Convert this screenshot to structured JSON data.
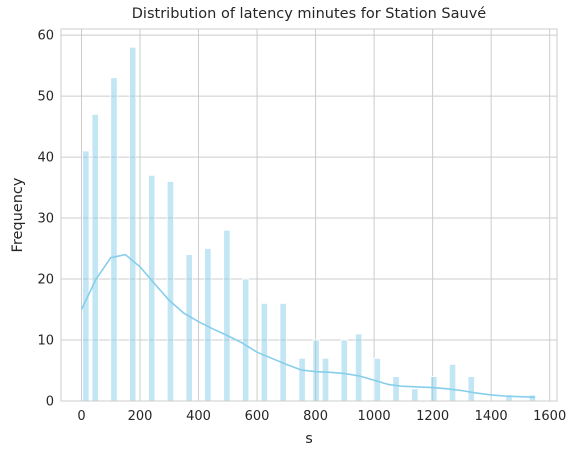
{
  "chart_data": {
    "type": "bar",
    "title": "Distribution of latency minutes for Station Sauvé",
    "xlabel": "s",
    "ylabel": "Frequency",
    "xlim": [
      -70,
      1625
    ],
    "ylim": [
      0,
      61
    ],
    "x_ticks": [
      0,
      200,
      400,
      600,
      800,
      1000,
      1200,
      1400,
      1600
    ],
    "y_ticks": [
      0,
      10,
      20,
      30,
      40,
      50,
      60
    ],
    "grid": true,
    "bar_color": "#87CEEB",
    "bar_opacity": 0.5,
    "kde_color": "#87CEEB",
    "bins": [
      {
        "x": 15,
        "value": 41
      },
      {
        "x": 47,
        "value": 47
      },
      {
        "x": 111,
        "value": 53
      },
      {
        "x": 175,
        "value": 58
      },
      {
        "x": 240,
        "value": 37
      },
      {
        "x": 304,
        "value": 36
      },
      {
        "x": 368,
        "value": 24
      },
      {
        "x": 432,
        "value": 25
      },
      {
        "x": 497,
        "value": 28
      },
      {
        "x": 561,
        "value": 20
      },
      {
        "x": 625,
        "value": 16
      },
      {
        "x": 689,
        "value": 16
      },
      {
        "x": 754,
        "value": 7
      },
      {
        "x": 802,
        "value": 10
      },
      {
        "x": 834,
        "value": 7
      },
      {
        "x": 898,
        "value": 10
      },
      {
        "x": 947,
        "value": 11
      },
      {
        "x": 1011,
        "value": 7
      },
      {
        "x": 1075,
        "value": 4
      },
      {
        "x": 1139,
        "value": 2
      },
      {
        "x": 1204,
        "value": 4
      },
      {
        "x": 1268,
        "value": 6
      },
      {
        "x": 1332,
        "value": 4
      },
      {
        "x": 1461,
        "value": 1
      },
      {
        "x": 1541,
        "value": 1
      }
    ],
    "bin_width": 22,
    "kde": {
      "x": [
        0,
        50,
        100,
        150,
        200,
        250,
        300,
        350,
        400,
        450,
        500,
        550,
        600,
        650,
        700,
        750,
        800,
        850,
        900,
        950,
        1000,
        1050,
        1100,
        1150,
        1200,
        1250,
        1300,
        1350,
        1400,
        1450,
        1500,
        1550
      ],
      "y": [
        15,
        20,
        23.5,
        24,
        22,
        19.2,
        16.5,
        14.4,
        13,
        11.8,
        10.7,
        9.5,
        8,
        7,
        6,
        5.1,
        4.8,
        4.7,
        4.5,
        4.1,
        3.4,
        2.7,
        2.4,
        2.3,
        2.2,
        2,
        1.7,
        1.3,
        1,
        0.8,
        0.7,
        0.6
      ]
    }
  }
}
